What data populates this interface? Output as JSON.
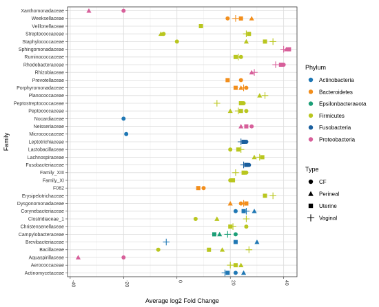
{
  "chart_data": {
    "type": "scatter",
    "xlabel": "Average log2 Fold Change",
    "ylabel": "Family",
    "xlim": [
      -41,
      45
    ],
    "xticks": [
      -40,
      -20,
      0,
      20,
      40
    ],
    "grid": true,
    "categories": [
      "Actinomycetaceae",
      "Aerococcaceae",
      "Aquaspirillaceae",
      "Bacillaceae",
      "Brevibacteriaceae",
      "Campylobacteraceae",
      "Christensenellaceae",
      "Clostridiaceae_1",
      "Corynebacteriaceae",
      "Dysgonomonadaceae",
      "Erysipelotrichaceae",
      "F082",
      "Family_XI",
      "Family_XIII",
      "Fusobacteriaceae",
      "Lachnospiraceae",
      "Lactobacillaceae",
      "Leptotrichiaceae",
      "Micrococcaceae",
      "Neisseriaceae",
      "Nocardiaceae",
      "Peptococcaceae",
      "Peptostreptococcaceae",
      "Planococcaceae",
      "Porphyromonadaceae",
      "Prevotellaceae",
      "Rhizobiaceae",
      "Rhodobacteraceae",
      "Ruminococcaceae",
      "Sphingomonadaceae",
      "Staphylococcaceae",
      "Streptococcaceae",
      "Veillonellaceae",
      "Weeksellaceae",
      "Xanthomonadaceae"
    ],
    "legend_phylum": {
      "title": "Phylum",
      "items": [
        {
          "name": "Actinobacteria",
          "color": "#1f77b4"
        },
        {
          "name": "Bacteroidetes",
          "color": "#f28e1c"
        },
        {
          "name": "Epsilonbacteraeota",
          "color": "#1b9e77"
        },
        {
          "name": "Firmicutes",
          "color": "#b9c61f"
        },
        {
          "name": "Fusobacteria",
          "color": "#1a5f9e"
        },
        {
          "name": "Proteobacteria",
          "color": "#d75f9a"
        }
      ]
    },
    "legend_type": {
      "title": "Type",
      "items": [
        {
          "name": "CF",
          "shape": "circle"
        },
        {
          "name": "Perineal",
          "shape": "triangle"
        },
        {
          "name": "Uterine",
          "shape": "square"
        },
        {
          "name": "Vaginal",
          "shape": "plus"
        }
      ]
    },
    "points": [
      {
        "family": "Xanthomonadaceae",
        "x": -33,
        "phylum": "Proteobacteria",
        "type": "Perineal"
      },
      {
        "family": "Xanthomonadaceae",
        "x": -20,
        "phylum": "Proteobacteria",
        "type": "CF"
      },
      {
        "family": "Weeksellaceae",
        "x": 19,
        "phylum": "Bacteroidetes",
        "type": "CF"
      },
      {
        "family": "Weeksellaceae",
        "x": 22,
        "phylum": "Bacteroidetes",
        "type": "Vaginal"
      },
      {
        "family": "Weeksellaceae",
        "x": 24,
        "phylum": "Bacteroidetes",
        "type": "Uterine"
      },
      {
        "family": "Weeksellaceae",
        "x": 28,
        "phylum": "Bacteroidetes",
        "type": "Perineal"
      },
      {
        "family": "Veillonellaceae",
        "x": 9,
        "phylum": "Firmicutes",
        "type": "Uterine"
      },
      {
        "family": "Streptococcaceae",
        "x": -6,
        "phylum": "Firmicutes",
        "type": "Perineal"
      },
      {
        "family": "Streptococcaceae",
        "x": -5,
        "phylum": "Firmicutes",
        "type": "CF"
      },
      {
        "family": "Streptococcaceae",
        "x": 26,
        "phylum": "Firmicutes",
        "type": "Vaginal"
      },
      {
        "family": "Streptococcaceae",
        "x": 27,
        "phylum": "Firmicutes",
        "type": "Uterine"
      },
      {
        "family": "Staphylococcaceae",
        "x": 0,
        "phylum": "Firmicutes",
        "type": "CF"
      },
      {
        "family": "Staphylococcaceae",
        "x": 26,
        "phylum": "Firmicutes",
        "type": "Perineal"
      },
      {
        "family": "Staphylococcaceae",
        "x": 33,
        "phylum": "Firmicutes",
        "type": "Uterine"
      },
      {
        "family": "Staphylococcaceae",
        "x": 36,
        "phylum": "Firmicutes",
        "type": "Vaginal"
      },
      {
        "family": "Sphingomonadaceae",
        "x": 40,
        "phylum": "Proteobacteria",
        "type": "Vaginal"
      },
      {
        "family": "Sphingomonadaceae",
        "x": 41,
        "phylum": "Proteobacteria",
        "type": "Perineal"
      },
      {
        "family": "Sphingomonadaceae",
        "x": 42,
        "phylum": "Proteobacteria",
        "type": "Uterine"
      },
      {
        "family": "Ruminococcaceae",
        "x": 22,
        "phylum": "Firmicutes",
        "type": "Uterine"
      },
      {
        "family": "Ruminococcaceae",
        "x": 23,
        "phylum": "Firmicutes",
        "type": "Vaginal"
      },
      {
        "family": "Ruminococcaceae",
        "x": 24,
        "phylum": "Firmicutes",
        "type": "CF"
      },
      {
        "family": "Rhodobacteraceae",
        "x": 37,
        "phylum": "Proteobacteria",
        "type": "Vaginal"
      },
      {
        "family": "Rhodobacteraceae",
        "x": 39,
        "phylum": "Proteobacteria",
        "type": "Uterine"
      },
      {
        "family": "Rhodobacteraceae",
        "x": 40,
        "phylum": "Proteobacteria",
        "type": "CF"
      },
      {
        "family": "Rhizobiaceae",
        "x": 28,
        "phylum": "Proteobacteria",
        "type": "Perineal"
      },
      {
        "family": "Rhizobiaceae",
        "x": 29,
        "phylum": "Proteobacteria",
        "type": "Vaginal"
      },
      {
        "family": "Prevotellaceae",
        "x": 19,
        "phylum": "Bacteroidetes",
        "type": "Uterine"
      },
      {
        "family": "Prevotellaceae",
        "x": 24,
        "phylum": "Bacteroidetes",
        "type": "CF"
      },
      {
        "family": "Porphyromonadaceae",
        "x": 22,
        "phylum": "Bacteroidetes",
        "type": "Uterine"
      },
      {
        "family": "Porphyromonadaceae",
        "x": 24,
        "phylum": "Bacteroidetes",
        "type": "Perineal"
      },
      {
        "family": "Porphyromonadaceae",
        "x": 25,
        "phylum": "Bacteroidetes",
        "type": "Vaginal"
      },
      {
        "family": "Porphyromonadaceae",
        "x": 26,
        "phylum": "Bacteroidetes",
        "type": "CF"
      },
      {
        "family": "Planococcaceae",
        "x": 31,
        "phylum": "Firmicutes",
        "type": "Perineal"
      },
      {
        "family": "Planococcaceae",
        "x": 33,
        "phylum": "Firmicutes",
        "type": "Vaginal"
      },
      {
        "family": "Peptostreptococcaceae",
        "x": 15,
        "phylum": "Firmicutes",
        "type": "Vaginal"
      },
      {
        "family": "Peptostreptococcaceae",
        "x": 24,
        "phylum": "Firmicutes",
        "type": "Uterine"
      },
      {
        "family": "Peptostreptococcaceae",
        "x": 25,
        "phylum": "Firmicutes",
        "type": "CF"
      },
      {
        "family": "Peptococcaceae",
        "x": 20,
        "phylum": "Firmicutes",
        "type": "Perineal"
      },
      {
        "family": "Peptococcaceae",
        "x": 23,
        "phylum": "Firmicutes",
        "type": "Vaginal"
      },
      {
        "family": "Peptococcaceae",
        "x": 24,
        "phylum": "Firmicutes",
        "type": "Uterine"
      },
      {
        "family": "Peptococcaceae",
        "x": 26,
        "phylum": "Firmicutes",
        "type": "CF"
      },
      {
        "family": "Nocardiaceae",
        "x": -20,
        "phylum": "Actinobacteria",
        "type": "CF"
      },
      {
        "family": "Neisseriaceae",
        "x": 24,
        "phylum": "Proteobacteria",
        "type": "Perineal"
      },
      {
        "family": "Neisseriaceae",
        "x": 26,
        "phylum": "Proteobacteria",
        "type": "Uterine"
      },
      {
        "family": "Neisseriaceae",
        "x": 28,
        "phylum": "Proteobacteria",
        "type": "CF"
      },
      {
        "family": "Micrococcaceae",
        "x": -19,
        "phylum": "Actinobacteria",
        "type": "CF"
      },
      {
        "family": "Leptotrichiaceae",
        "x": 24,
        "phylum": "Fusobacteria",
        "type": "Vaginal"
      },
      {
        "family": "Leptotrichiaceae",
        "x": 25,
        "phylum": "Fusobacteria",
        "type": "Uterine"
      },
      {
        "family": "Leptotrichiaceae",
        "x": 26,
        "phylum": "Fusobacteria",
        "type": "CF"
      },
      {
        "family": "Lactobacillaceae",
        "x": 20,
        "phylum": "Firmicutes",
        "type": "CF"
      },
      {
        "family": "Lactobacillaceae",
        "x": 23,
        "phylum": "Firmicutes",
        "type": "Uterine"
      },
      {
        "family": "Lactobacillaceae",
        "x": 24,
        "phylum": "Firmicutes",
        "type": "Vaginal"
      },
      {
        "family": "Lachnospiraceae",
        "x": 29,
        "phylum": "Firmicutes",
        "type": "Perineal"
      },
      {
        "family": "Lachnospiraceae",
        "x": 31,
        "phylum": "Firmicutes",
        "type": "Vaginal"
      },
      {
        "family": "Lachnospiraceae",
        "x": 32,
        "phylum": "Firmicutes",
        "type": "Uterine"
      },
      {
        "family": "Fusobacteriaceae",
        "x": 25,
        "phylum": "Fusobacteria",
        "type": "Vaginal"
      },
      {
        "family": "Fusobacteriaceae",
        "x": 26,
        "phylum": "Fusobacteria",
        "type": "Uterine"
      },
      {
        "family": "Fusobacteriaceae",
        "x": 27,
        "phylum": "Fusobacteria",
        "type": "CF"
      },
      {
        "family": "Family_XIII",
        "x": 22,
        "phylum": "Firmicutes",
        "type": "Vaginal"
      },
      {
        "family": "Family_XIII",
        "x": 25,
        "phylum": "Firmicutes",
        "type": "Uterine"
      },
      {
        "family": "Family_XIII",
        "x": 26,
        "phylum": "Firmicutes",
        "type": "CF"
      },
      {
        "family": "Family_XI",
        "x": 20,
        "phylum": "Firmicutes",
        "type": "CF"
      },
      {
        "family": "Family_XI",
        "x": 21,
        "phylum": "Firmicutes",
        "type": "Uterine"
      },
      {
        "family": "F082",
        "x": 8,
        "phylum": "Bacteroidetes",
        "type": "Uterine"
      },
      {
        "family": "F082",
        "x": 10,
        "phylum": "Bacteroidetes",
        "type": "CF"
      },
      {
        "family": "Erysipelotrichaceae",
        "x": 33,
        "phylum": "Firmicutes",
        "type": "Uterine"
      },
      {
        "family": "Erysipelotrichaceae",
        "x": 36,
        "phylum": "Firmicutes",
        "type": "Vaginal"
      },
      {
        "family": "Dysgonomonadaceae",
        "x": 20,
        "phylum": "Bacteroidetes",
        "type": "Perineal"
      },
      {
        "family": "Dysgonomonadaceae",
        "x": 24,
        "phylum": "Bacteroidetes",
        "type": "CF"
      },
      {
        "family": "Dysgonomonadaceae",
        "x": 25,
        "phylum": "Bacteroidetes",
        "type": "Vaginal"
      },
      {
        "family": "Dysgonomonadaceae",
        "x": 26,
        "phylum": "Bacteroidetes",
        "type": "Uterine"
      },
      {
        "family": "Corynebacteriaceae",
        "x": 22,
        "phylum": "Actinobacteria",
        "type": "CF"
      },
      {
        "family": "Corynebacteriaceae",
        "x": 25,
        "phylum": "Actinobacteria",
        "type": "Uterine"
      },
      {
        "family": "Corynebacteriaceae",
        "x": 26,
        "phylum": "Actinobacteria",
        "type": "Vaginal"
      },
      {
        "family": "Corynebacteriaceae",
        "x": 29,
        "phylum": "Actinobacteria",
        "type": "Perineal"
      },
      {
        "family": "Clostridiaceae_1",
        "x": 7,
        "phylum": "Firmicutes",
        "type": "CF"
      },
      {
        "family": "Clostridiaceae_1",
        "x": 15,
        "phylum": "Firmicutes",
        "type": "Perineal"
      },
      {
        "family": "Clostridiaceae_1",
        "x": 26,
        "phylum": "Firmicutes",
        "type": "Vaginal"
      },
      {
        "family": "Christensenellaceae",
        "x": 20,
        "phylum": "Firmicutes",
        "type": "Uterine"
      },
      {
        "family": "Christensenellaceae",
        "x": 21,
        "phylum": "Firmicutes",
        "type": "Vaginal"
      },
      {
        "family": "Christensenellaceae",
        "x": 26,
        "phylum": "Firmicutes",
        "type": "CF"
      },
      {
        "family": "Campylobacteraceae",
        "x": 14,
        "phylum": "Epsilonbacteraeota",
        "type": "Uterine"
      },
      {
        "family": "Campylobacteraceae",
        "x": 16,
        "phylum": "Epsilonbacteraeota",
        "type": "Perineal"
      },
      {
        "family": "Campylobacteraceae",
        "x": 19,
        "phylum": "Epsilonbacteraeota",
        "type": "Vaginal"
      },
      {
        "family": "Campylobacteraceae",
        "x": 22,
        "phylum": "Epsilonbacteraeota",
        "type": "CF"
      },
      {
        "family": "Brevibacteriaceae",
        "x": -4,
        "phylum": "Actinobacteria",
        "type": "Vaginal"
      },
      {
        "family": "Brevibacteriaceae",
        "x": 22,
        "phylum": "Actinobacteria",
        "type": "Uterine"
      },
      {
        "family": "Brevibacteriaceae",
        "x": 30,
        "phylum": "Actinobacteria",
        "type": "Perineal"
      },
      {
        "family": "Bacillaceae",
        "x": -7,
        "phylum": "Firmicutes",
        "type": "CF"
      },
      {
        "family": "Bacillaceae",
        "x": 12,
        "phylum": "Firmicutes",
        "type": "Uterine"
      },
      {
        "family": "Bacillaceae",
        "x": 17,
        "phylum": "Firmicutes",
        "type": "Perineal"
      },
      {
        "family": "Bacillaceae",
        "x": 27,
        "phylum": "Firmicutes",
        "type": "Vaginal"
      },
      {
        "family": "Aquaspirillaceae",
        "x": -37,
        "phylum": "Proteobacteria",
        "type": "Perineal"
      },
      {
        "family": "Aquaspirillaceae",
        "x": -20,
        "phylum": "Proteobacteria",
        "type": "CF"
      },
      {
        "family": "Aerococcaceae",
        "x": 20,
        "phylum": "Firmicutes",
        "type": "Vaginal"
      },
      {
        "family": "Aerococcaceae",
        "x": 22,
        "phylum": "Firmicutes",
        "type": "Uterine"
      },
      {
        "family": "Aerococcaceae",
        "x": 24,
        "phylum": "Firmicutes",
        "type": "Perineal"
      },
      {
        "family": "Actinomycetaceae",
        "x": 18,
        "phylum": "Actinobacteria",
        "type": "Vaginal"
      },
      {
        "family": "Actinomycetaceae",
        "x": 19,
        "phylum": "Actinobacteria",
        "type": "Uterine"
      },
      {
        "family": "Actinomycetaceae",
        "x": 22,
        "phylum": "Actinobacteria",
        "type": "CF"
      },
      {
        "family": "Actinomycetaceae",
        "x": 25,
        "phylum": "Actinobacteria",
        "type": "Perineal"
      }
    ]
  }
}
